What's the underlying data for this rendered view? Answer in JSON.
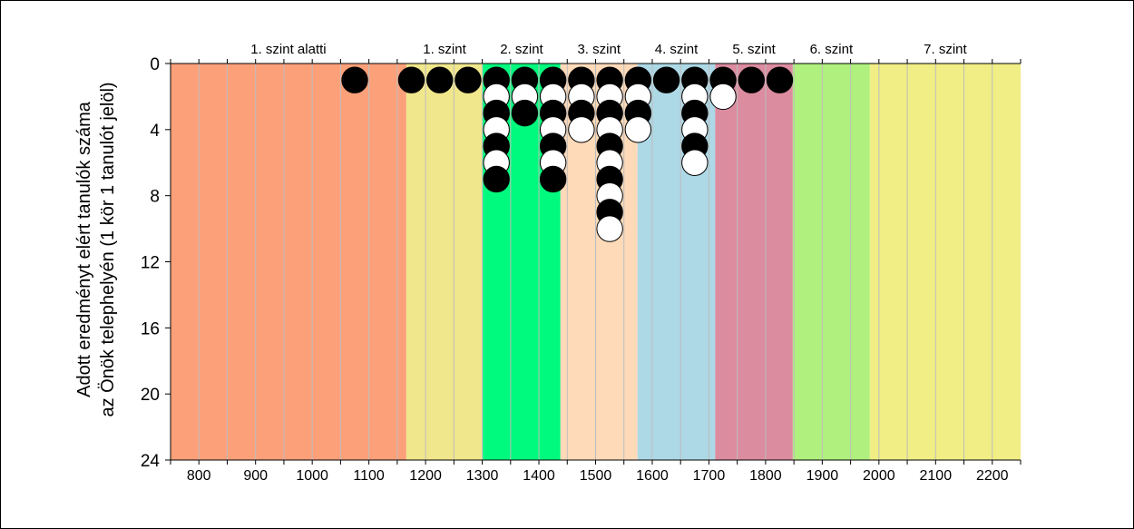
{
  "chart_data": {
    "type": "scatter",
    "subtype": "dot-histogram",
    "ylabel_lines": [
      "Adott eredményt elért tanulók száma",
      "az Önök telephelyén (1 kör 1 tanulót jelöl)"
    ],
    "x_range": [
      750,
      2250
    ],
    "x_ticks": [
      800,
      900,
      1000,
      1100,
      1200,
      1300,
      1400,
      1500,
      1600,
      1700,
      1800,
      1900,
      2000,
      2100,
      2200
    ],
    "x_tick_labels": [
      "800",
      "900",
      "1000",
      "1100",
      "1200",
      "1300",
      "1400",
      "1500",
      "1600",
      "1700",
      "1800",
      "1900",
      "2000",
      "2100",
      "2200"
    ],
    "x_minor_step": 50,
    "y_range": [
      0,
      24
    ],
    "y_inverted": true,
    "y_ticks": [
      0,
      4,
      8,
      12,
      16,
      20,
      24
    ],
    "y_tick_labels": [
      "0",
      "4",
      "8",
      "12",
      "16",
      "20",
      "24"
    ],
    "grid": true,
    "levels": [
      {
        "name": "1. szint alatti",
        "from": 750,
        "to": 1166,
        "color": "#fca07a"
      },
      {
        "name": "1. szint",
        "from": 1166,
        "to": 1301,
        "color": "#f0e68c"
      },
      {
        "name": "2. szint",
        "from": 1301,
        "to": 1438,
        "color": "#00fa7d"
      },
      {
        "name": "3. szint",
        "from": 1438,
        "to": 1574,
        "color": "#ffdab9"
      },
      {
        "name": "4. szint",
        "from": 1574,
        "to": 1711,
        "color": "#add8e6"
      },
      {
        "name": "5. szint",
        "from": 1711,
        "to": 1848,
        "color": "#db8c9f"
      },
      {
        "name": "6. szint",
        "from": 1848,
        "to": 1984,
        "color": "#b0f07e"
      },
      {
        "name": "7. szint",
        "from": 1984,
        "to": 2250,
        "color": "#f0ee84"
      }
    ],
    "dot_colors": {
      "black": "#000000",
      "white": "#ffffff",
      "outline": "#000000"
    },
    "columns": [
      {
        "x": 1075,
        "dots": [
          "black"
        ]
      },
      {
        "x": 1175,
        "dots": [
          "black"
        ]
      },
      {
        "x": 1225,
        "dots": [
          "black"
        ]
      },
      {
        "x": 1275,
        "dots": [
          "black"
        ]
      },
      {
        "x": 1325,
        "dots": [
          "black",
          "white",
          "black",
          "white",
          "black",
          "white",
          "black"
        ]
      },
      {
        "x": 1375,
        "dots": [
          "black",
          "white",
          "black"
        ]
      },
      {
        "x": 1425,
        "dots": [
          "black",
          "white",
          "black",
          "white",
          "black",
          "white",
          "black"
        ]
      },
      {
        "x": 1475,
        "dots": [
          "black",
          "white",
          "black",
          "white"
        ]
      },
      {
        "x": 1525,
        "dots": [
          "black",
          "white",
          "black",
          "white",
          "black",
          "white",
          "black",
          "white",
          "black",
          "white"
        ]
      },
      {
        "x": 1575,
        "dots": [
          "black",
          "white",
          "black",
          "white"
        ]
      },
      {
        "x": 1625,
        "dots": [
          "black"
        ]
      },
      {
        "x": 1675,
        "dots": [
          "black",
          "white",
          "black",
          "white",
          "black",
          "white"
        ]
      },
      {
        "x": 1725,
        "dots": [
          "black",
          "white"
        ]
      },
      {
        "x": 1775,
        "dots": [
          "black"
        ]
      },
      {
        "x": 1825,
        "dots": [
          "black"
        ]
      }
    ]
  }
}
